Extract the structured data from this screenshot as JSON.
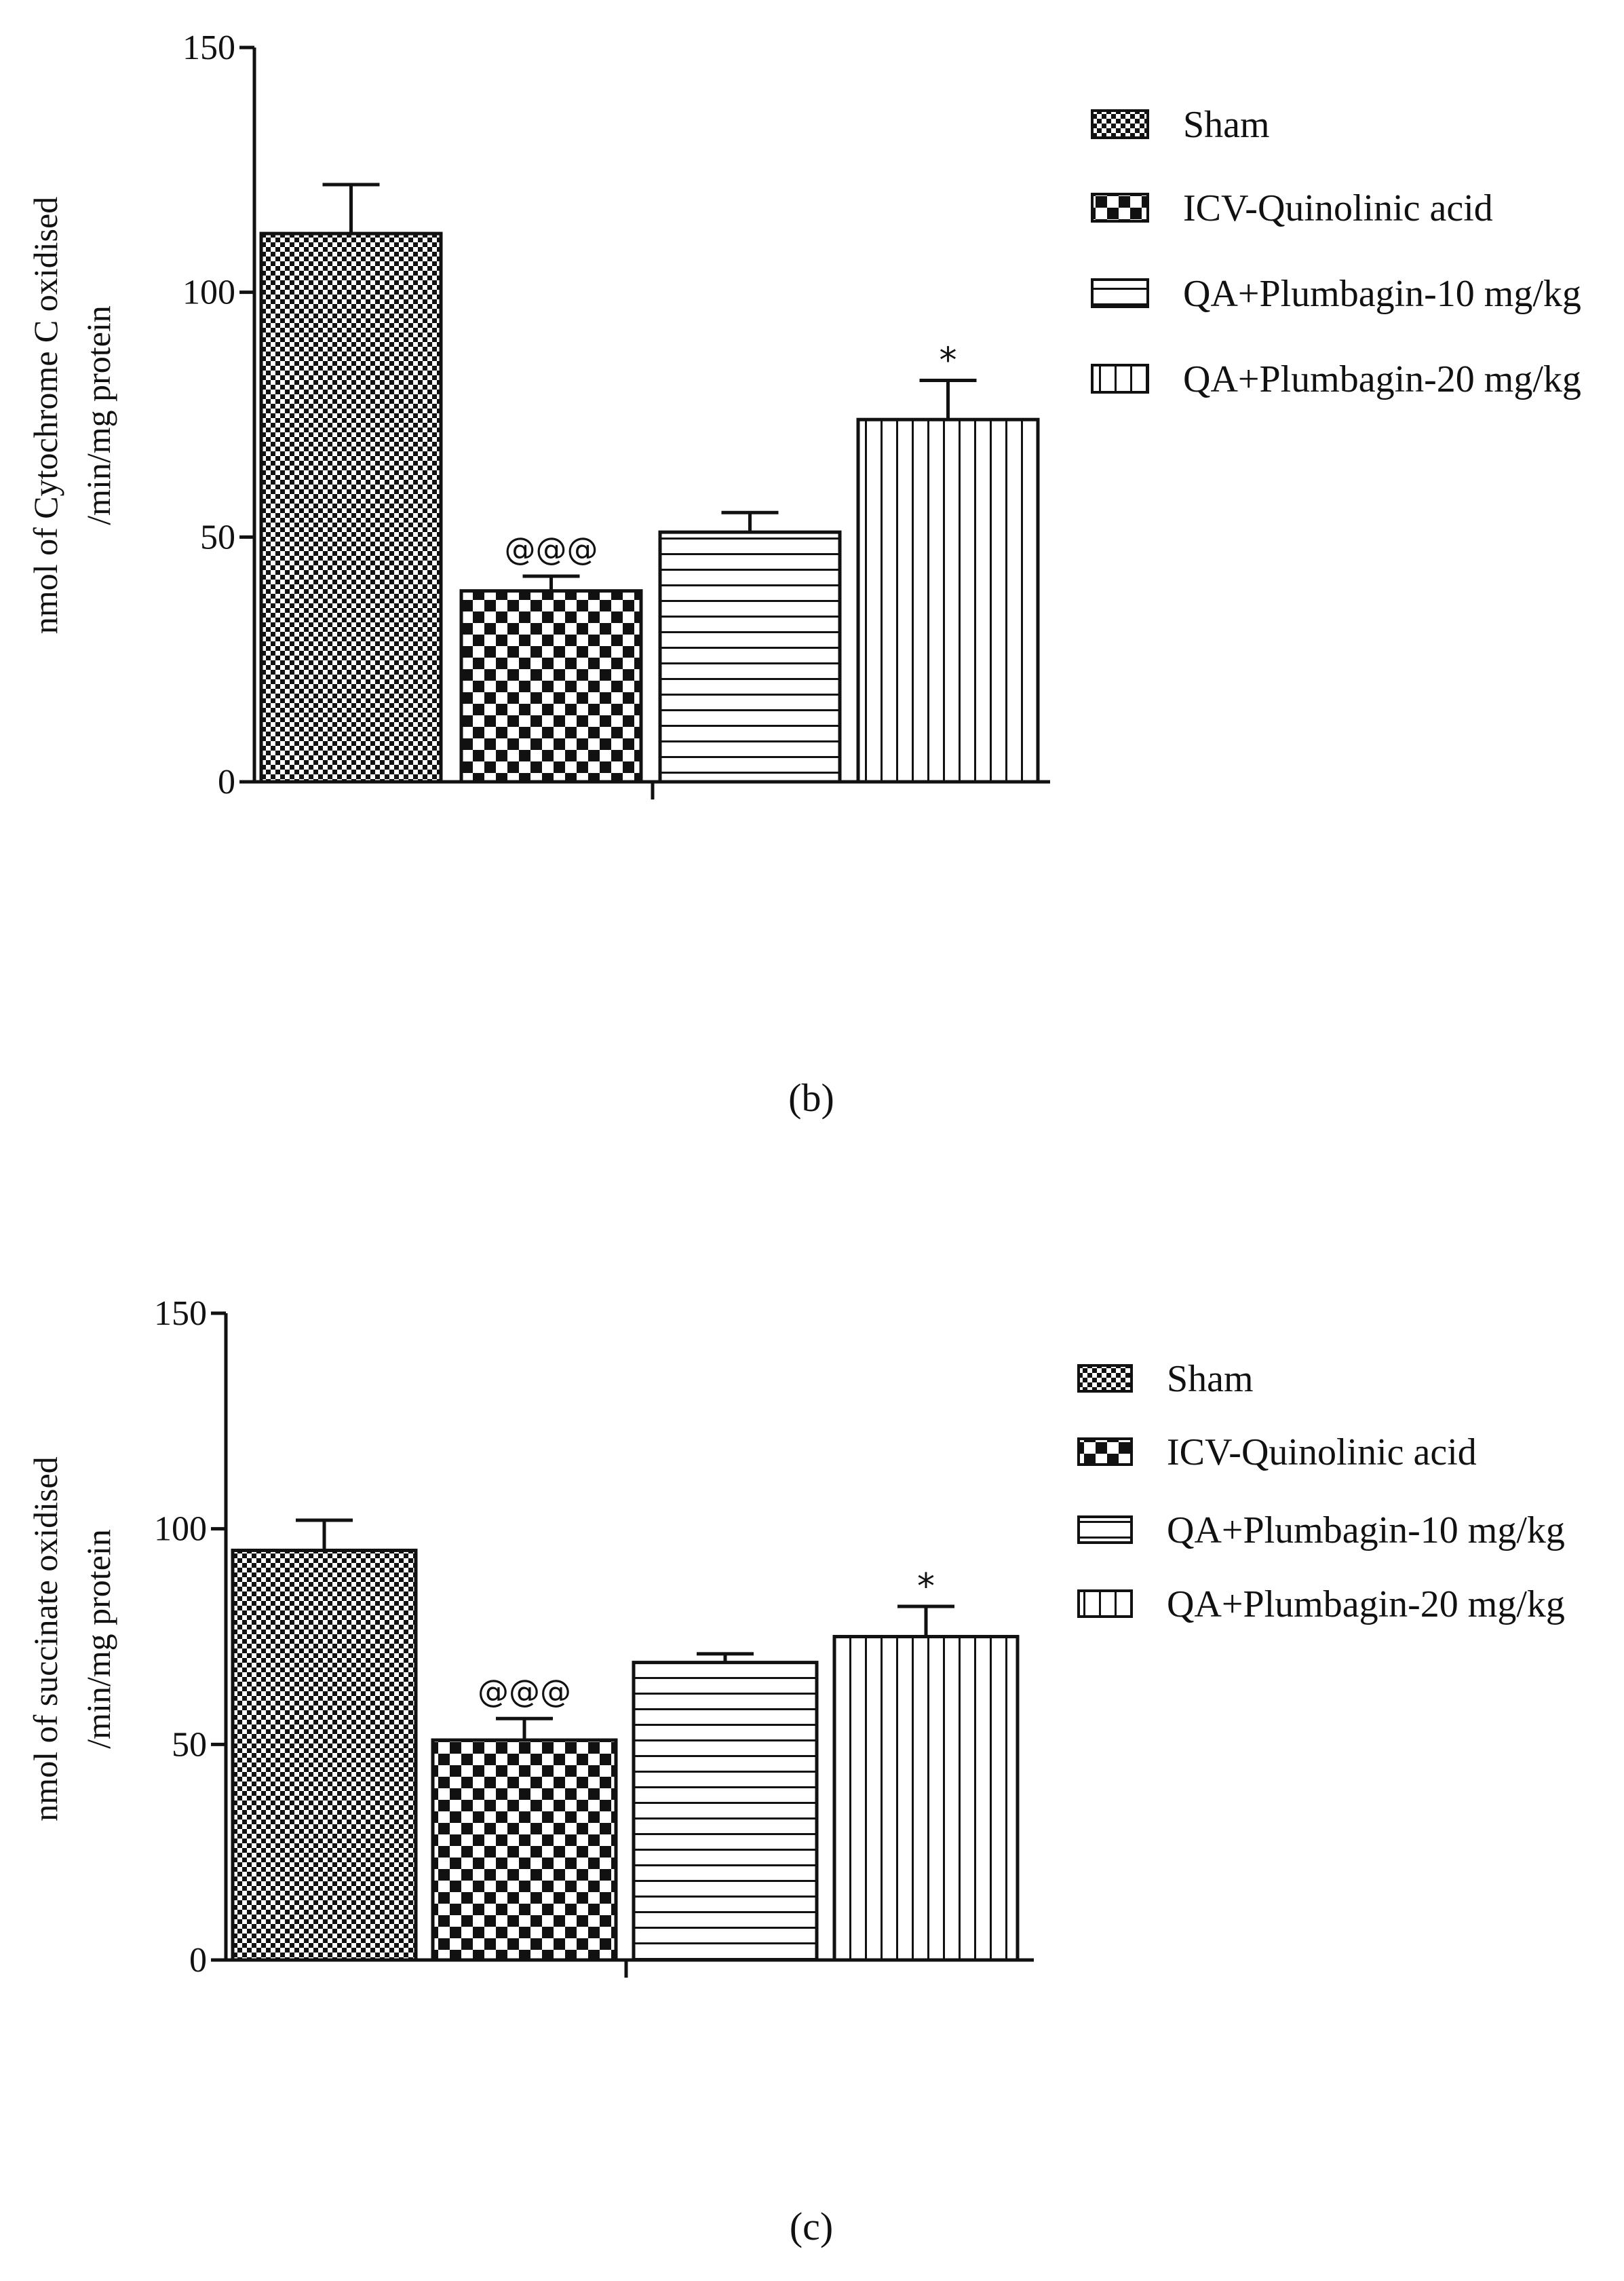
{
  "figure_labels": [
    "(b)",
    "(c)"
  ],
  "legend_entries": [
    "Sham",
    "ICV-Quinolinic acid",
    "QA+Plumbagin-10 mg/kg",
    "QA+Plumbagin-20 mg/kg"
  ],
  "colors": {
    "ink": "#111111",
    "background": "#ffffff"
  },
  "chart_data": [
    {
      "type": "bar",
      "panel": "(b)",
      "title": "",
      "xlabel": "",
      "ylabel": "nmol of Cytochrome C oxidised /min/mg protein",
      "ylabel_lines": [
        "nmol of Cytochrome C oxidised",
        "/min/mg protein"
      ],
      "ylim": [
        0,
        150
      ],
      "yticks": [
        0,
        50,
        100,
        150
      ],
      "categories": [
        "Sham",
        "ICV-Quinolinic acid",
        "QA+Plumbagin-10 mg/kg",
        "QA+Plumbagin-20 mg/kg"
      ],
      "values": [
        112,
        39,
        51,
        74
      ],
      "errors": [
        10,
        3,
        4,
        8
      ],
      "annotations": [
        "",
        "@@@",
        "",
        "*"
      ],
      "patterns": [
        "fine-checker",
        "coarse-checker",
        "horizontal-lines",
        "vertical-lines"
      ],
      "legend": {
        "placement": "right"
      }
    },
    {
      "type": "bar",
      "panel": "(c)",
      "title": "",
      "xlabel": "",
      "ylabel": "nmol of succinate oxidised /min/mg protein",
      "ylabel_lines": [
        "nmol of succinate oxidised",
        "/min/mg protein"
      ],
      "ylim": [
        0,
        150
      ],
      "yticks": [
        0,
        50,
        100,
        150
      ],
      "categories": [
        "Sham",
        "ICV-Quinolinic acid",
        "QA+Plumbagin-10 mg/kg",
        "QA+Plumbagin-20 mg/kg"
      ],
      "values": [
        95,
        51,
        69,
        75
      ],
      "errors": [
        7,
        5,
        2,
        7
      ],
      "annotations": [
        "",
        "@@@",
        "",
        "*"
      ],
      "patterns": [
        "fine-checker",
        "coarse-checker",
        "horizontal-lines",
        "vertical-lines"
      ],
      "legend": {
        "placement": "right"
      }
    }
  ]
}
